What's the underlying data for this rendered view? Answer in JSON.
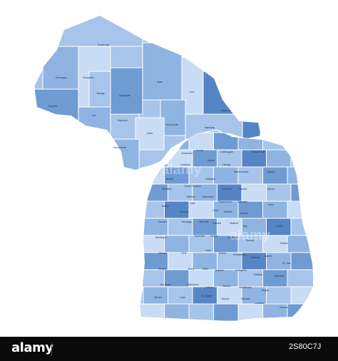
{
  "map": {
    "fills": {
      "light": "#c9dcf5",
      "mid": "#a7c4ea",
      "base": "#8fb4e2",
      "deep": "#6f9bd3",
      "deepest": "#5585c4",
      "line": "#ffffff"
    },
    "labels": [
      {
        "text": "Keweenaw"
      },
      {
        "text": "Ontonagon"
      },
      {
        "text": "Houghton"
      },
      {
        "text": "Baraga"
      },
      {
        "text": "Gogebic"
      },
      {
        "text": "Iron"
      },
      {
        "text": "Marquette"
      },
      {
        "text": "Alger"
      },
      {
        "text": "Luce"
      },
      {
        "text": "Chippewa"
      },
      {
        "text": "Dickinson"
      },
      {
        "text": "Delta"
      },
      {
        "text": "Schoolcraft"
      },
      {
        "text": "Mackinac"
      },
      {
        "text": "Menominee"
      },
      {
        "text": "Emmet"
      },
      {
        "text": "Cheboygan"
      },
      {
        "text": "Presque Isle"
      },
      {
        "text": "Charlevoix"
      },
      {
        "text": "Antrim"
      },
      {
        "text": "Otsego"
      },
      {
        "text": "Montmorency"
      },
      {
        "text": "Alpena"
      },
      {
        "text": "Leelanau"
      },
      {
        "text": "Benzie"
      },
      {
        "text": "Grand Traverse"
      },
      {
        "text": "Kalkaska"
      },
      {
        "text": "Crawford"
      },
      {
        "text": "Oscoda"
      },
      {
        "text": "Alcona"
      },
      {
        "text": "Manistee"
      },
      {
        "text": "Wexford"
      },
      {
        "text": "Missaukee"
      },
      {
        "text": "Roscommon"
      },
      {
        "text": "Ogemaw"
      },
      {
        "text": "Iosco"
      },
      {
        "text": "Mason"
      },
      {
        "text": "Lake"
      },
      {
        "text": "Osceola"
      },
      {
        "text": "Clare"
      },
      {
        "text": "Gladwin"
      },
      {
        "text": "Arenac"
      },
      {
        "text": "Oceana"
      },
      {
        "text": "Newaygo"
      },
      {
        "text": "Mecosta"
      },
      {
        "text": "Isabella"
      },
      {
        "text": "Midland"
      },
      {
        "text": "Bay"
      },
      {
        "text": "Huron"
      },
      {
        "text": "Muskegon"
      },
      {
        "text": "Montcalm"
      },
      {
        "text": "Gratiot"
      },
      {
        "text": "Saginaw"
      },
      {
        "text": "Tuscola"
      },
      {
        "text": "Sanilac"
      },
      {
        "text": "Ottawa"
      },
      {
        "text": "Kent"
      },
      {
        "text": "Ionia"
      },
      {
        "text": "Clinton"
      },
      {
        "text": "Shiawassee"
      },
      {
        "text": "Genesee"
      },
      {
        "text": "Lapeer"
      },
      {
        "text": "St. Clair"
      },
      {
        "text": "Allegan"
      },
      {
        "text": "Barry"
      },
      {
        "text": "Eaton"
      },
      {
        "text": "Ingham"
      },
      {
        "text": "Livingston"
      },
      {
        "text": "Oakland"
      },
      {
        "text": "Macomb"
      },
      {
        "text": "Van Buren"
      },
      {
        "text": "Kalamazoo"
      },
      {
        "text": "Calhoun"
      },
      {
        "text": "Jackson"
      },
      {
        "text": "Washtenaw"
      },
      {
        "text": "Wayne"
      },
      {
        "text": "Berrien"
      },
      {
        "text": "Cass"
      },
      {
        "text": "St. Joseph"
      },
      {
        "text": "Branch"
      },
      {
        "text": "Hillsdale"
      },
      {
        "text": "Lenawee"
      },
      {
        "text": "Monroe"
      }
    ]
  },
  "watermark": {
    "text": "alamy"
  },
  "footer": {
    "logo": "alamy",
    "image_id": "2S80C7J"
  }
}
